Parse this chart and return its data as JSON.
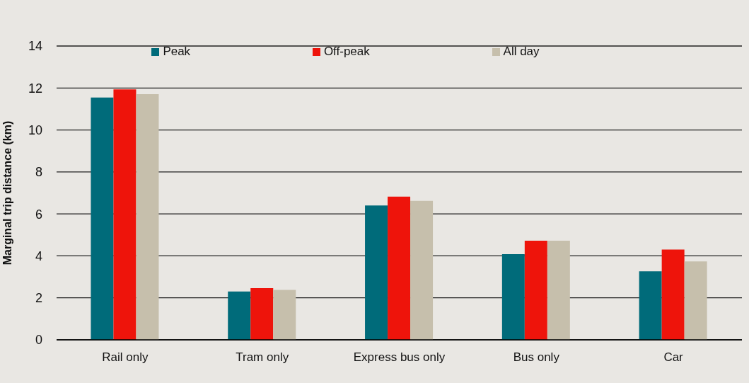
{
  "chart_data": {
    "type": "bar",
    "ylabel": "Marginal trip distance (km)",
    "categories": [
      "Rail only",
      "Tram only",
      "Express bus only",
      "Bus only",
      "Car"
    ],
    "series": [
      {
        "name": "Peak",
        "color": "#006b7a",
        "values": [
          11.55,
          2.3,
          6.4,
          4.08,
          3.26
        ]
      },
      {
        "name": "Off-peak",
        "color": "#ee140b",
        "values": [
          11.93,
          2.46,
          6.82,
          4.72,
          4.3
        ]
      },
      {
        "name": "All day",
        "color": "#c6bfac",
        "values": [
          11.71,
          2.38,
          6.62,
          4.72,
          3.74
        ]
      }
    ],
    "ylim": [
      0,
      14
    ],
    "yticks": [
      0,
      2,
      4,
      6,
      8,
      10,
      12,
      14
    ],
    "grid": "y",
    "legend": "top"
  }
}
